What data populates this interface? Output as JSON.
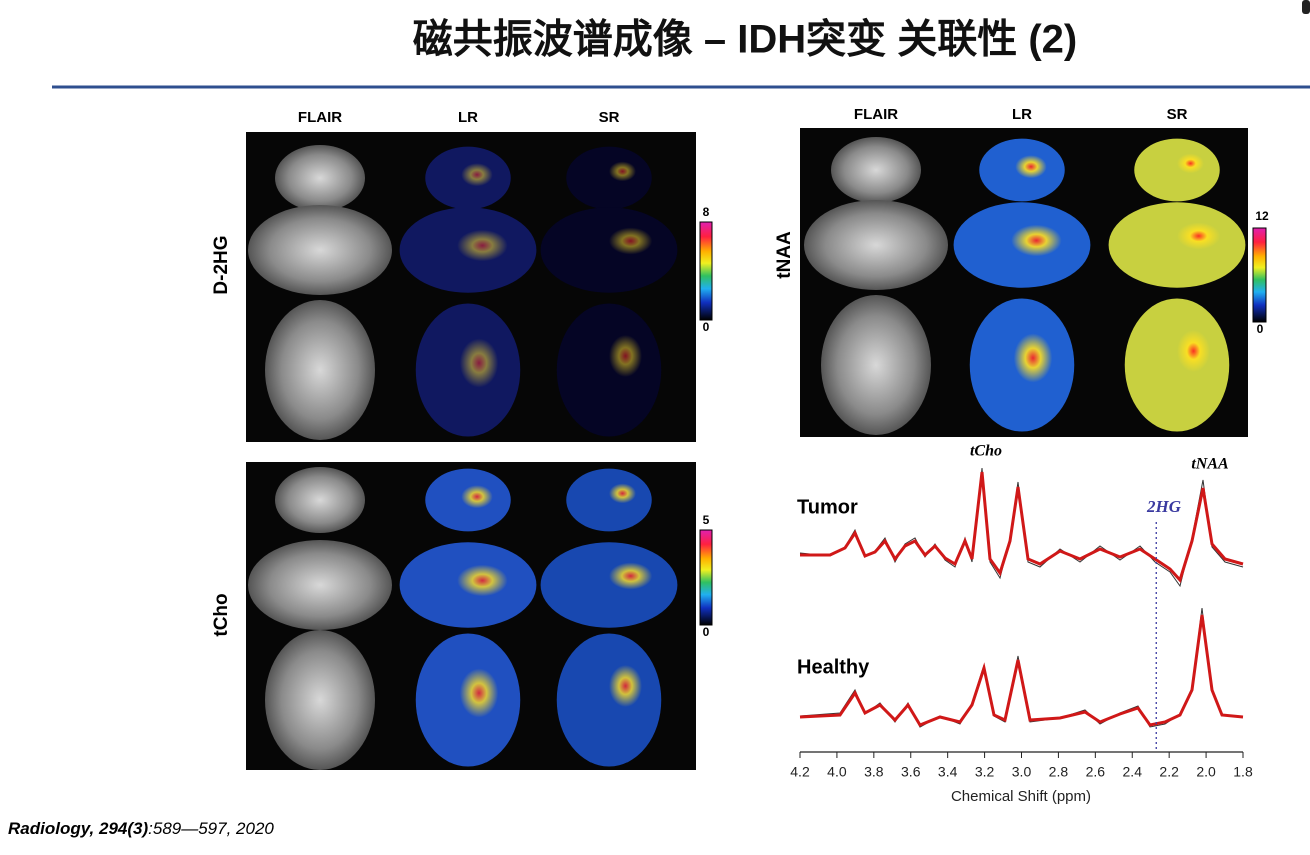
{
  "header": {
    "title": "磁共振波谱成像 – IDH突变 关联性 (2)"
  },
  "panels": [
    {
      "columns": [
        "FLAIR",
        "LR",
        "SR"
      ],
      "row_label": "D-2HG",
      "colorbar": {
        "max": 8,
        "min": 0
      }
    },
    {
      "columns": [
        "FLAIR",
        "LR",
        "SR"
      ],
      "row_label": "tNAA",
      "colorbar": {
        "max": 12,
        "min": 0
      }
    },
    {
      "row_label": "tCho",
      "colorbar": {
        "max": 5,
        "min": 0
      }
    }
  ],
  "spectrum": {
    "peak_labels": [
      "tCho",
      "tNAA"
    ],
    "marker": {
      "label": "2HG",
      "value": 2.27
    },
    "series_labels": [
      "Tumor",
      "Healthy"
    ],
    "xlabel": "Chemical Shift (ppm)",
    "xlim": [
      4.2,
      1.8
    ],
    "xticks": [
      4.2,
      {
        "value": 4.0,
        "label": "4.0"
      },
      3.8,
      3.6,
      3.4,
      3.2,
      {
        "value": 3.0,
        "label": "3.0"
      },
      2.8,
      2.6,
      2.4,
      2.2,
      {
        "value": 2.0,
        "label": "2.0"
      },
      1.8
    ]
  },
  "citation": {
    "journal": "Radiology, 294(3)",
    "details": ":589—597, 2020"
  }
}
